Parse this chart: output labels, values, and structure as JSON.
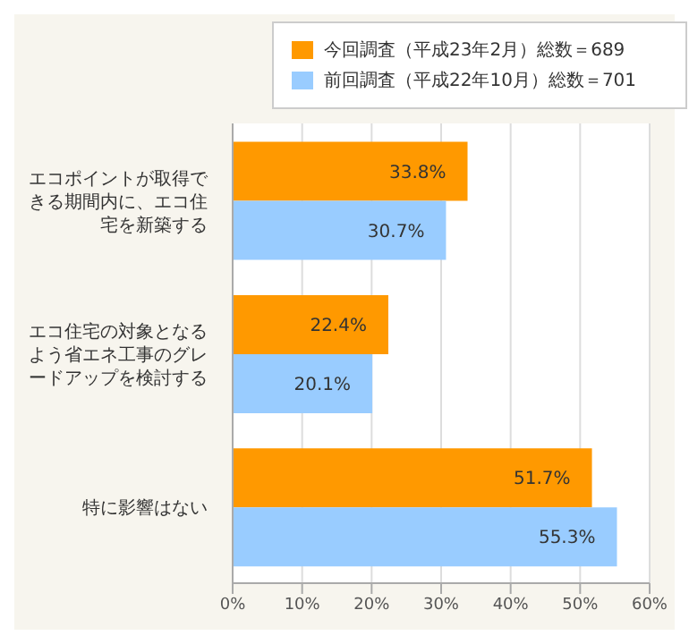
{
  "chart_data": {
    "type": "bar",
    "orientation": "horizontal",
    "categories": [
      "エコポイントが取得できる期間内に、エコ住宅を新築する",
      "エコ住宅の対象となるよう省エネ工事のグレードアップを検討する",
      "特に影響はない"
    ],
    "series": [
      {
        "name": "今回調査（平成23年2月）総数＝689",
        "color": "#ff9900",
        "values": [
          33.8,
          22.4,
          51.7
        ],
        "value_labels": [
          "33.8%",
          "22.4%",
          "51.7%"
        ]
      },
      {
        "name": "前回調査（平成22年10月）総数＝701",
        "color": "#99ccff",
        "values": [
          30.7,
          20.1,
          55.3
        ],
        "value_labels": [
          "30.7%",
          "20.1%",
          "55.3%"
        ]
      }
    ],
    "xlim": [
      0,
      60
    ],
    "xticks": [
      {
        "value": 0,
        "label": "0%"
      },
      {
        "value": 10,
        "label": "10%"
      },
      {
        "value": 20,
        "label": "20%"
      },
      {
        "value": 30,
        "label": "30%"
      },
      {
        "value": 40,
        "label": "40%"
      },
      {
        "value": 50,
        "label": "50%"
      },
      {
        "value": 60,
        "label": "60%"
      }
    ],
    "grid": "x",
    "legend": "top"
  }
}
